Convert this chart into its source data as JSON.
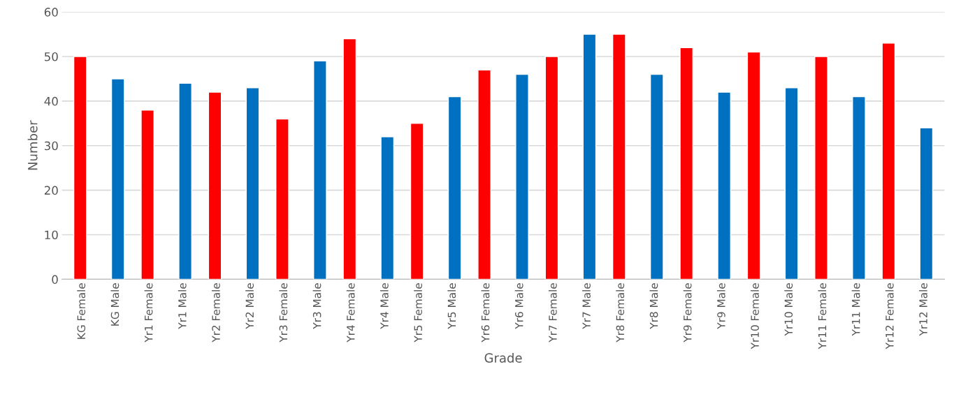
{
  "chart_data": {
    "type": "bar",
    "xlabel": "Grade",
    "ylabel": "Number",
    "categories": [
      "KG Female",
      "KG Male",
      "Yr1 Female",
      "Yr1 Male",
      "Yr2 Female",
      "Yr2 Male",
      "Yr3 Female",
      "Yr3 Male",
      "Yr4 Female",
      "Yr4 Male",
      "Yr5 Female",
      "Yr5 Male",
      "Yr6 Female",
      "Yr6 Male",
      "Yr7 Female",
      "Yr7 Male",
      "Yr8 Female",
      "Yr8 Male",
      "Yr9 Female",
      "Yr9 Male",
      "Yr10 Female",
      "Yr10 Male",
      "Yr11 Female",
      "Yr11 Male",
      "Yr12 Female",
      "Yr12 Male"
    ],
    "series": [
      {
        "color": "#ff0000",
        "values": [
          50,
          null,
          38,
          null,
          42,
          null,
          36,
          null,
          54,
          null,
          35,
          null,
          47,
          null,
          50,
          null,
          55,
          null,
          52,
          null,
          51,
          null,
          50,
          null,
          53,
          null
        ]
      },
      {
        "color": "#0070c0",
        "values": [
          null,
          45,
          null,
          44,
          null,
          43,
          null,
          49,
          null,
          32,
          null,
          41,
          null,
          46,
          null,
          55,
          null,
          46,
          null,
          42,
          null,
          43,
          null,
          41,
          null,
          34
        ]
      }
    ],
    "ylim": [
      0,
      60
    ],
    "yticks": [
      0,
      10,
      20,
      30,
      40,
      50,
      60
    ],
    "grid": "y",
    "legend": false
  }
}
